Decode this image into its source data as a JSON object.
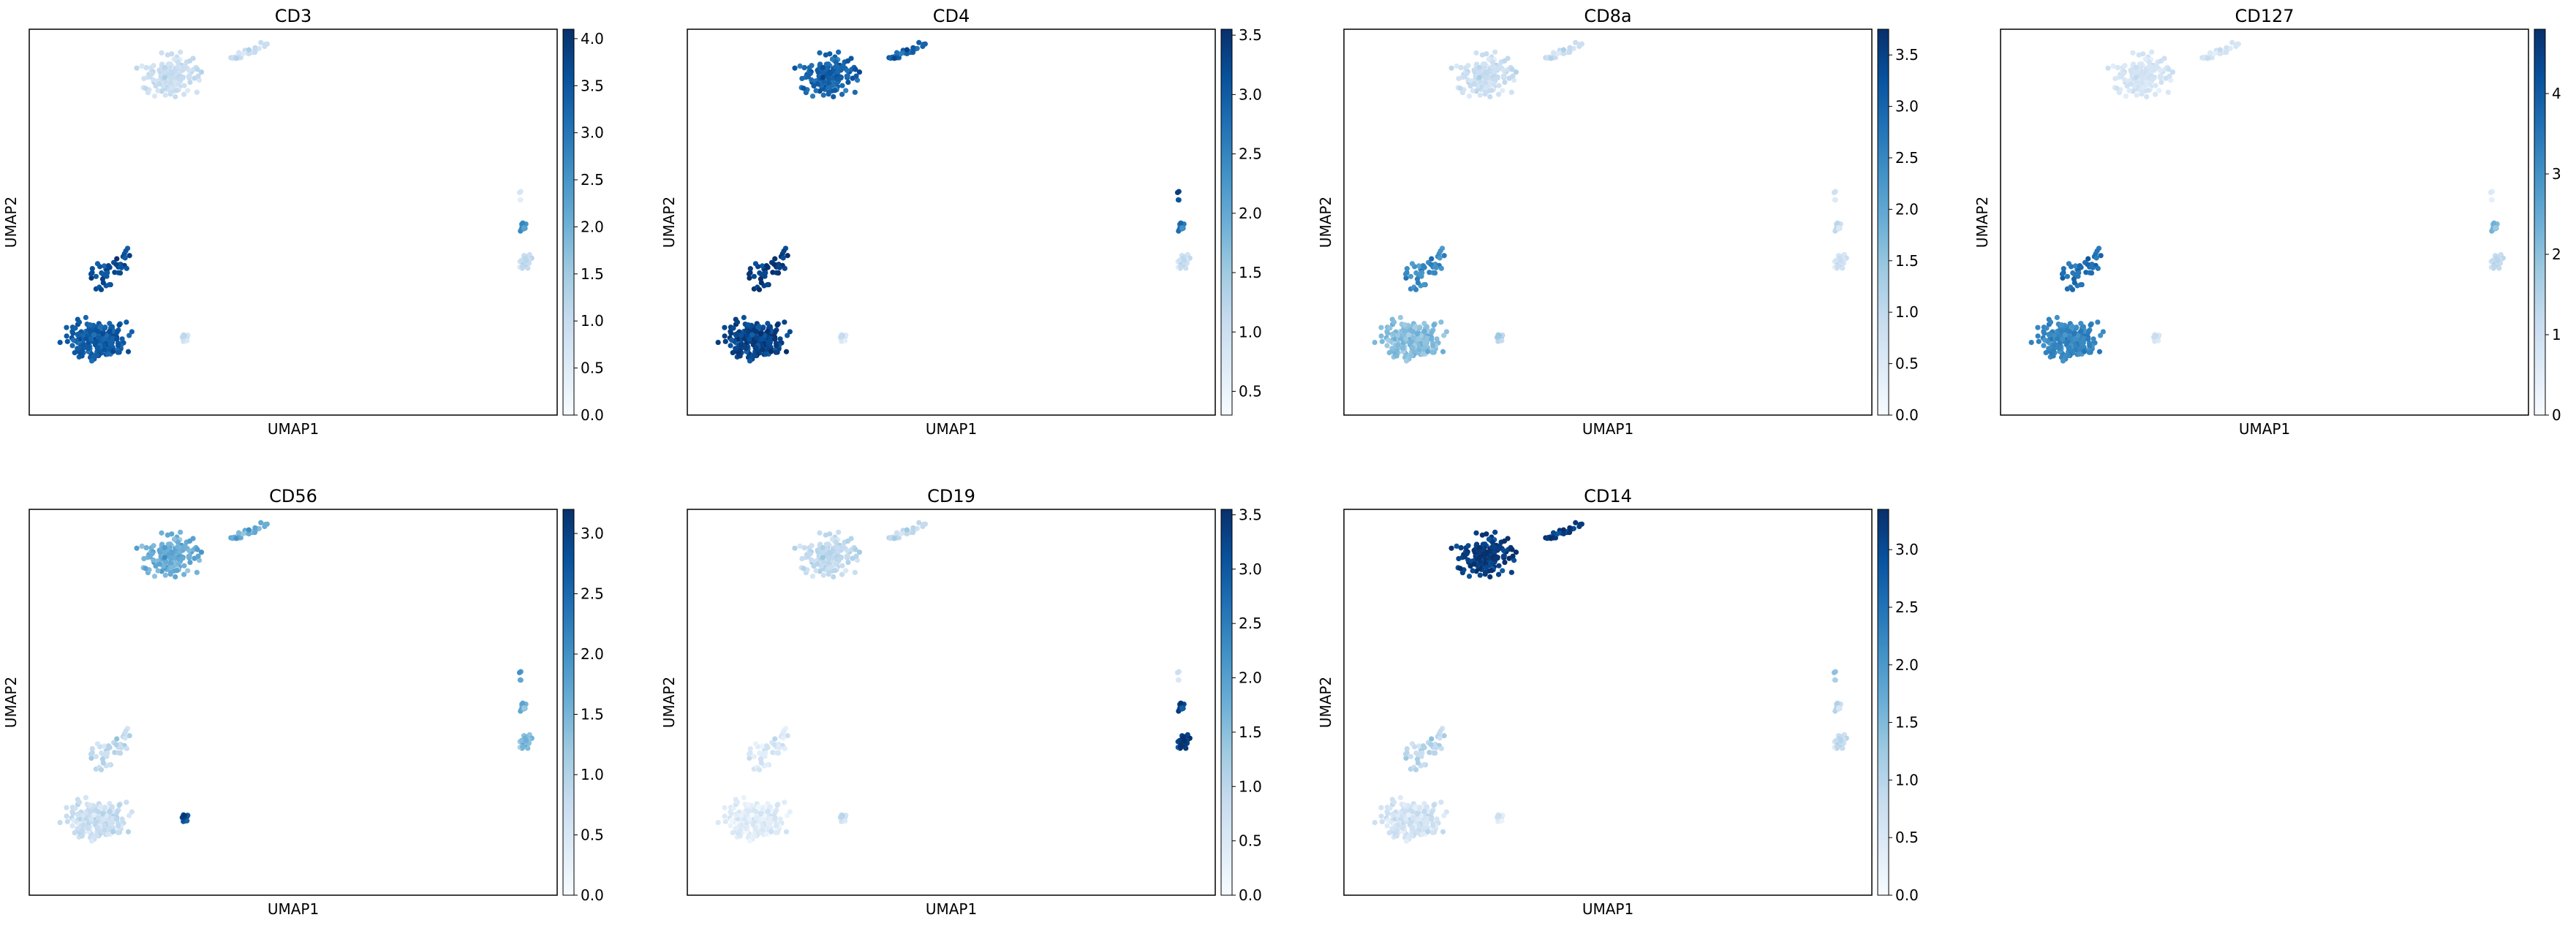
{
  "chart_data": [
    {
      "type": "scatter",
      "title": "CD3",
      "xlabel": "UMAP1",
      "ylabel": "UMAP2",
      "colormap": "Blues",
      "colorbar": {
        "ticks": [
          "0.0",
          "0.5",
          "1.0",
          "1.5",
          "2.0",
          "2.5",
          "3.0",
          "3.5",
          "4.0"
        ],
        "min": 0.0,
        "max": 4.1
      },
      "clusters": {
        "upper": 0.9,
        "lower_left": 3.4,
        "left_wing": 3.6,
        "small_blob": 0.9,
        "right_upper": 0.5,
        "right_mid": 2.6,
        "right_lower": 1.0
      }
    },
    {
      "type": "scatter",
      "title": "CD4",
      "xlabel": "UMAP1",
      "ylabel": "UMAP2",
      "colormap": "Blues",
      "colorbar": {
        "ticks": [
          "0.5",
          "1.0",
          "1.5",
          "2.0",
          "2.5",
          "3.0",
          "3.5"
        ],
        "min": 0.3,
        "max": 3.55
      },
      "clusters": {
        "upper": 2.9,
        "lower_left": 3.3,
        "left_wing": 3.4,
        "small_blob": 0.9,
        "right_upper": 3.2,
        "right_mid": 2.7,
        "right_lower": 1.0
      }
    },
    {
      "type": "scatter",
      "title": "CD8a",
      "xlabel": "UMAP1",
      "ylabel": "UMAP2",
      "colormap": "Blues",
      "colorbar": {
        "ticks": [
          "0.0",
          "0.5",
          "1.0",
          "1.5",
          "2.0",
          "2.5",
          "3.0",
          "3.5"
        ],
        "min": 0.0,
        "max": 3.75
      },
      "clusters": {
        "upper": 0.8,
        "lower_left": 1.6,
        "left_wing": 2.4,
        "small_blob": 1.2,
        "right_upper": 0.6,
        "right_mid": 0.9,
        "right_lower": 0.7
      }
    },
    {
      "type": "scatter",
      "title": "CD127",
      "xlabel": "UMAP1",
      "ylabel": "UMAP2",
      "colormap": "Blues",
      "colorbar": {
        "ticks": [
          "0",
          "1",
          "2",
          "3",
          "4"
        ],
        "min": 0.0,
        "max": 4.8
      },
      "clusters": {
        "upper": 0.8,
        "lower_left": 3.2,
        "left_wing": 3.6,
        "small_blob": 0.9,
        "right_upper": 0.5,
        "right_mid": 2.2,
        "right_lower": 1.2
      }
    },
    {
      "type": "scatter",
      "title": "CD56",
      "xlabel": "UMAP1",
      "ylabel": "UMAP2",
      "colormap": "Blues",
      "colorbar": {
        "ticks": [
          "0.0",
          "0.5",
          "1.0",
          "1.5",
          "2.0",
          "2.5",
          "3.0"
        ],
        "min": 0.0,
        "max": 3.2
      },
      "clusters": {
        "upper": 1.6,
        "lower_left": 0.7,
        "left_wing": 0.8,
        "small_blob": 2.9,
        "right_upper": 1.8,
        "right_mid": 1.6,
        "right_lower": 1.4
      }
    },
    {
      "type": "scatter",
      "title": "CD19",
      "xlabel": "UMAP1",
      "ylabel": "UMAP2",
      "colormap": "Blues",
      "colorbar": {
        "ticks": [
          "0.0",
          "0.5",
          "1.0",
          "1.5",
          "2.0",
          "2.5",
          "3.0",
          "3.5"
        ],
        "min": 0.0,
        "max": 3.55
      },
      "clusters": {
        "upper": 0.9,
        "lower_left": 0.4,
        "left_wing": 0.5,
        "small_blob": 0.8,
        "right_upper": 0.6,
        "right_mid": 3.3,
        "right_lower": 3.4
      }
    },
    {
      "type": "scatter",
      "title": "CD14",
      "xlabel": "UMAP1",
      "ylabel": "UMAP2",
      "colormap": "Blues",
      "colorbar": {
        "ticks": [
          "0.0",
          "0.5",
          "1.0",
          "1.5",
          "2.0",
          "2.5",
          "3.0"
        ],
        "min": 0.0,
        "max": 3.35
      },
      "clusters": {
        "upper": 3.2,
        "lower_left": 0.6,
        "left_wing": 0.9,
        "small_blob": 0.5,
        "right_upper": 1.2,
        "right_mid": 0.9,
        "right_lower": 0.8
      }
    }
  ]
}
